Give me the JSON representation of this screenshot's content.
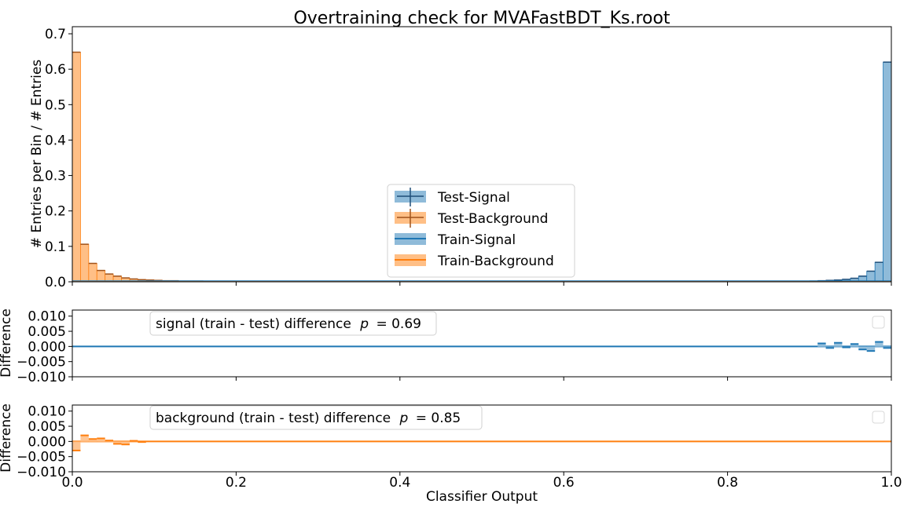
{
  "title": "Overtraining check for MVAFastBDT_Ks.root",
  "chart_data": [
    {
      "id": "main",
      "type": "histogram",
      "title": "Overtraining check for MVAFastBDT_Ks.root",
      "xlabel": "",
      "ylabel": "# Entries per Bin / # Entries",
      "xlim": [
        0.0,
        1.0
      ],
      "ylim": [
        0.0,
        0.72
      ],
      "yticks": [
        "0.0",
        "0.1",
        "0.2",
        "0.3",
        "0.4",
        "0.5",
        "0.6",
        "0.7"
      ],
      "grid": false,
      "legend_position": "center bottom",
      "legend": [
        "Test-Signal",
        "Test-Background",
        "Train-Signal",
        "Train-Background"
      ],
      "bin_width": 0.01,
      "background": {
        "bins": [
          {
            "x": 0.0,
            "value": 0.648
          },
          {
            "x": 0.01,
            "value": 0.106
          },
          {
            "x": 0.02,
            "value": 0.052
          },
          {
            "x": 0.03,
            "value": 0.032
          },
          {
            "x": 0.04,
            "value": 0.022
          },
          {
            "x": 0.05,
            "value": 0.016
          },
          {
            "x": 0.06,
            "value": 0.011
          },
          {
            "x": 0.07,
            "value": 0.008
          },
          {
            "x": 0.08,
            "value": 0.006
          },
          {
            "x": 0.09,
            "value": 0.005
          },
          {
            "x": 0.1,
            "value": 0.004
          },
          {
            "x": 0.11,
            "value": 0.003
          },
          {
            "x": 0.12,
            "value": 0.003
          },
          {
            "x": 0.13,
            "value": 0.002
          },
          {
            "x": 0.14,
            "value": 0.002
          },
          {
            "x": 0.15,
            "value": 0.002
          },
          {
            "x": 0.16,
            "value": 0.0015
          },
          {
            "x": 0.17,
            "value": 0.0015
          },
          {
            "x": 0.18,
            "value": 0.001
          },
          {
            "x": 0.19,
            "value": 0.001
          }
        ]
      },
      "signal": {
        "bins": [
          {
            "x": 0.9,
            "value": 0.002
          },
          {
            "x": 0.91,
            "value": 0.003
          },
          {
            "x": 0.92,
            "value": 0.004
          },
          {
            "x": 0.93,
            "value": 0.005
          },
          {
            "x": 0.94,
            "value": 0.007
          },
          {
            "x": 0.95,
            "value": 0.01
          },
          {
            "x": 0.96,
            "value": 0.016
          },
          {
            "x": 0.97,
            "value": 0.03
          },
          {
            "x": 0.98,
            "value": 0.055
          },
          {
            "x": 0.99,
            "value": 0.62
          }
        ]
      }
    },
    {
      "id": "signal-diff",
      "type": "step",
      "ylabel": "Difference",
      "annotation": "signal (train - test) difference",
      "p_value_label": "p",
      "p_value": "= 0.69",
      "ylim": [
        -0.01,
        0.012
      ],
      "yticks": [
        "0.010",
        "0.005",
        "0.000",
        "−0.005",
        "−0.010"
      ],
      "x": [
        0.91,
        0.92,
        0.93,
        0.94,
        0.95,
        0.96,
        0.97,
        0.98,
        0.99
      ],
      "values": [
        0.001,
        -0.0005,
        0.0012,
        -0.0003,
        0.0008,
        -0.001,
        -0.0015,
        0.0015,
        -0.0005
      ]
    },
    {
      "id": "background-diff",
      "type": "step",
      "ylabel": "Difference",
      "annotation": "background (train - test) difference",
      "p_value_label": "p",
      "p_value": "= 0.85",
      "ylim": [
        -0.01,
        0.012
      ],
      "yticks": [
        "0.010",
        "0.005",
        "0.000",
        "−0.005",
        "−0.010"
      ],
      "x": [
        0.0,
        0.01,
        0.02,
        0.03,
        0.04,
        0.05,
        0.06,
        0.07,
        0.08
      ],
      "values": [
        -0.003,
        0.002,
        0.0008,
        0.001,
        0.0003,
        -0.0008,
        -0.001,
        0.0002,
        -0.0002
      ]
    }
  ],
  "xaxis": {
    "label": "Classifier Output",
    "ticks": [
      "0.0",
      "0.2",
      "0.4",
      "0.6",
      "0.8",
      "1.0"
    ]
  },
  "colors": {
    "signal": "#1f77b4",
    "signal_fill": "#8fbbd9",
    "background": "#ff7f0e",
    "background_fill": "#ffbf86"
  }
}
